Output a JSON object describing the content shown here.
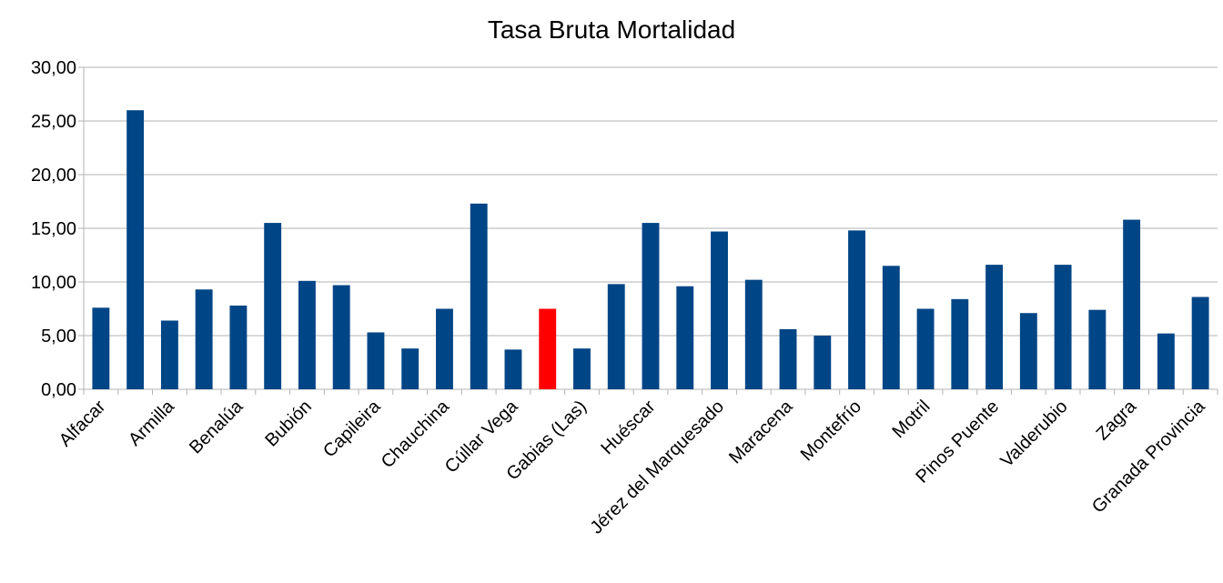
{
  "chart_data": {
    "type": "bar",
    "title": "Tasa Bruta Mortalidad",
    "categories": [
      "Alfacar",
      null,
      "Armilla",
      null,
      "Benalúa",
      null,
      "Bubión",
      null,
      "Capileira",
      null,
      "Chauchina",
      null,
      "Cúllar Vega",
      null,
      "Gabias (Las)",
      null,
      "Huéscar",
      null,
      "Jérez del Marquesado",
      null,
      "Maracena",
      null,
      "Montefrío",
      null,
      "Motril",
      null,
      "Pinos Puente",
      null,
      "Valderubio",
      null,
      "Zagra",
      null,
      "Granada Provincia"
    ],
    "values": [
      7.6,
      26.0,
      6.4,
      9.3,
      7.8,
      15.5,
      10.1,
      9.7,
      5.3,
      3.8,
      7.5,
      17.3,
      3.7,
      7.5,
      3.8,
      9.8,
      15.5,
      9.6,
      14.7,
      10.2,
      5.6,
      5.0,
      14.8,
      11.5,
      7.5,
      8.4,
      11.6,
      7.1,
      11.6,
      7.4,
      15.8,
      5.2,
      8.6
    ],
    "colors": [
      "#004586",
      "#004586",
      "#004586",
      "#004586",
      "#004586",
      "#004586",
      "#004586",
      "#004586",
      "#004586",
      "#004586",
      "#004586",
      "#004586",
      "#004586",
      "#ff0000",
      "#004586",
      "#004586",
      "#004586",
      "#004586",
      "#004586",
      "#004586",
      "#004586",
      "#004586",
      "#004586",
      "#004586",
      "#004586",
      "#004586",
      "#004586",
      "#004586",
      "#004586",
      "#004586",
      "#004586",
      "#004586",
      "#004586"
    ],
    "ylim": [
      0,
      30
    ],
    "yticks": [
      {
        "value": 0,
        "label": "0,00"
      },
      {
        "value": 5,
        "label": "5,00"
      },
      {
        "value": 10,
        "label": "10,00"
      },
      {
        "value": 15,
        "label": "15,00"
      },
      {
        "value": 20,
        "label": "20,00"
      },
      {
        "value": 25,
        "label": "25,00"
      },
      {
        "value": 30,
        "label": "30,00"
      }
    ],
    "grid": true
  }
}
